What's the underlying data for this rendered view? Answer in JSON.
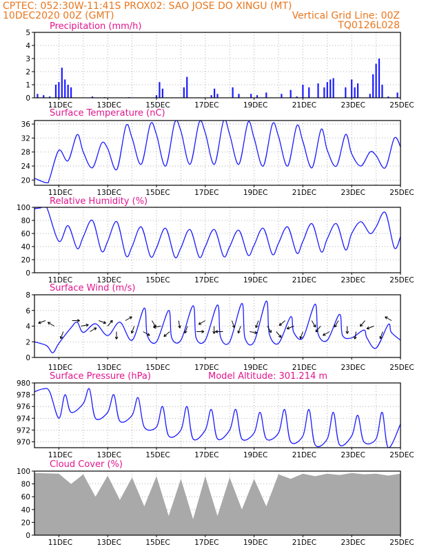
{
  "header": {
    "line1": "CPTEC:  052:30W-11:41S   PROX02: SAO JOSE DO XINGU (MT)",
    "line2_left": "10DEC2020 00Z (GMT)",
    "line2_right": "Vertical Grid Line: 00Z",
    "line3_right": "TQ0126L028"
  },
  "colors": {
    "header": "#e8761e",
    "title": "#e0158c",
    "series": "#1a1aff",
    "cloud": "#a9a9a9",
    "grid": "#999999"
  },
  "x_axis": {
    "start": "10DEC2020 00Z",
    "end": "25DEC2020 00Z",
    "tick_labels": [
      "11DEC",
      "13DEC",
      "15DEC",
      "17DEC",
      "19DEC",
      "21DEC",
      "23DEC",
      "25DEC"
    ]
  },
  "chart_data": [
    {
      "type": "bar",
      "title": "Precipitation (mm/h)",
      "ylim": [
        0,
        5
      ],
      "yticks": [
        0,
        1,
        2,
        3,
        4,
        5
      ],
      "grid": true,
      "x": [
        "10DEC 03Z",
        "10DEC 09Z",
        "10DEC 15Z",
        "10DEC 21Z",
        "11DEC 00Z",
        "11DEC 03Z",
        "11DEC 06Z",
        "11DEC 09Z",
        "11DEC 12Z",
        "12DEC 09Z",
        "12DEC 21Z",
        "13DEC 21Z",
        "15DEC 00Z",
        "15DEC 03Z",
        "15DEC 06Z",
        "16DEC 03Z",
        "16DEC 06Z",
        "17DEC 06Z",
        "17DEC 09Z",
        "17DEC 12Z",
        "18DEC 03Z",
        "18DEC 09Z",
        "18DEC 21Z",
        "19DEC 03Z",
        "19DEC 12Z",
        "20DEC 03Z",
        "20DEC 12Z",
        "20DEC 18Z",
        "21DEC 00Z",
        "21DEC 06Z",
        "21DEC 15Z",
        "21DEC 21Z",
        "22DEC 00Z",
        "22DEC 03Z",
        "22DEC 06Z",
        "22DEC 18Z",
        "23DEC 00Z",
        "23DEC 03Z",
        "23DEC 06Z",
        "23DEC 18Z",
        "23DEC 21Z",
        "24DEC 00Z",
        "24DEC 03Z",
        "24DEC 06Z",
        "24DEC 12Z",
        "24DEC 21Z"
      ],
      "values": [
        0.3,
        0.2,
        0.1,
        1.0,
        1.2,
        2.3,
        1.4,
        1.0,
        0.8,
        0.1,
        0.05,
        0.05,
        0.2,
        1.2,
        0.7,
        0.8,
        1.6,
        0.2,
        0.7,
        0.3,
        0.8,
        0.3,
        0.3,
        0.2,
        0.4,
        0.3,
        0.6,
        0.1,
        1.0,
        0.8,
        1.1,
        0.8,
        1.2,
        1.4,
        1.5,
        0.8,
        1.4,
        0.8,
        1.1,
        0.3,
        1.8,
        2.6,
        3.0,
        1.0,
        0.1,
        0.4
      ]
    },
    {
      "type": "line",
      "title": "Surface Temperature (nC)",
      "ylim": [
        18.5,
        37
      ],
      "yticks": [
        20,
        24,
        28,
        32,
        36
      ],
      "grid": true,
      "series": [
        {
          "x": [
            "10DEC 00Z",
            "10DEC 12Z",
            "10DEC 15Z",
            "11DEC 00Z",
            "11DEC 09Z",
            "11DEC 18Z",
            "12DEC 00Z",
            "12DEC 09Z",
            "12DEC 18Z",
            "13DEC 00Z",
            "13DEC 09Z",
            "13DEC 18Z",
            "14DEC 00Z",
            "14DEC 09Z",
            "14DEC 18Z",
            "15DEC 00Z",
            "15DEC 09Z",
            "15DEC 18Z",
            "16DEC 00Z",
            "16DEC 09Z",
            "16DEC 18Z",
            "17DEC 00Z",
            "17DEC 09Z",
            "17DEC 18Z",
            "18DEC 00Z",
            "18DEC 09Z",
            "18DEC 18Z",
            "19DEC 00Z",
            "19DEC 09Z",
            "19DEC 18Z",
            "20DEC 00Z",
            "20DEC 09Z",
            "20DEC 18Z",
            "21DEC 00Z",
            "21DEC 09Z",
            "21DEC 18Z",
            "22DEC 00Z",
            "22DEC 09Z",
            "22DEC 18Z",
            "23DEC 00Z",
            "23DEC 09Z",
            "23DEC 18Z",
            "24DEC 00Z",
            "24DEC 09Z",
            "24DEC 18Z",
            "25DEC 00Z"
          ],
          "values": [
            20.5,
            19.2,
            20.5,
            28.5,
            25.5,
            33.0,
            28.0,
            23.5,
            30.5,
            29.0,
            23.0,
            35.5,
            32.0,
            24.5,
            36.0,
            33.0,
            24.0,
            36.5,
            34.0,
            24.5,
            36.5,
            33.5,
            24.5,
            37.0,
            33.0,
            24.5,
            36.5,
            32.0,
            24.0,
            36.0,
            32.5,
            24.0,
            35.5,
            31.0,
            23.5,
            34.5,
            28.5,
            24.0,
            33.0,
            27.5,
            24.0,
            28.0,
            27.0,
            23.5,
            32.0,
            29.5
          ]
        }
      ]
    },
    {
      "type": "line",
      "title": "Relative Humidity (%)",
      "ylim": [
        0,
        100
      ],
      "yticks": [
        0,
        20,
        40,
        60,
        80,
        100
      ],
      "grid": true,
      "series": [
        {
          "x": [
            "10DEC 00Z",
            "10DEC 06Z",
            "10DEC 12Z",
            "11DEC 00Z",
            "11DEC 09Z",
            "11DEC 18Z",
            "12DEC 00Z",
            "12DEC 09Z",
            "12DEC 18Z",
            "13DEC 00Z",
            "13DEC 09Z",
            "13DEC 18Z",
            "14DEC 00Z",
            "14DEC 09Z",
            "14DEC 18Z",
            "15DEC 00Z",
            "15DEC 09Z",
            "15DEC 18Z",
            "16DEC 00Z",
            "16DEC 09Z",
            "16DEC 18Z",
            "17DEC 00Z",
            "17DEC 09Z",
            "17DEC 18Z",
            "18DEC 00Z",
            "18DEC 09Z",
            "18DEC 18Z",
            "19DEC 00Z",
            "19DEC 09Z",
            "19DEC 18Z",
            "20DEC 00Z",
            "20DEC 09Z",
            "20DEC 18Z",
            "21DEC 00Z",
            "21DEC 09Z",
            "21DEC 18Z",
            "22DEC 00Z",
            "22DEC 09Z",
            "22DEC 18Z",
            "23DEC 00Z",
            "23DEC 09Z",
            "23DEC 18Z",
            "24DEC 00Z",
            "24DEC 09Z",
            "24DEC 18Z",
            "25DEC 00Z"
          ],
          "values": [
            98,
            99,
            100,
            48,
            72,
            37,
            55,
            80,
            33,
            48,
            78,
            26,
            40,
            70,
            25,
            38,
            68,
            24,
            38,
            66,
            24,
            40,
            66,
            25,
            40,
            65,
            27,
            42,
            68,
            28,
            45,
            70,
            30,
            48,
            75,
            32,
            52,
            75,
            35,
            60,
            78,
            60,
            70,
            92,
            38,
            55
          ]
        }
      ]
    },
    {
      "type": "line",
      "title": "Surface Wind (m/s)",
      "ylim": [
        0,
        8
      ],
      "yticks": [
        0,
        2,
        4,
        6,
        8
      ],
      "grid": true,
      "series": [
        {
          "x": [
            "10DEC 00Z",
            "10DEC 12Z",
            "10DEC 18Z",
            "11DEC 00Z",
            "11DEC 12Z",
            "11DEC 18Z",
            "12DEC 00Z",
            "12DEC 12Z",
            "13DEC 00Z",
            "13DEC 12Z",
            "14DEC 00Z",
            "14DEC 12Z",
            "14DEC 15Z",
            "15DEC 00Z",
            "15DEC 12Z",
            "15DEC 15Z",
            "16DEC 00Z",
            "16DEC 12Z",
            "16DEC 15Z",
            "17DEC 00Z",
            "17DEC 12Z",
            "17DEC 15Z",
            "18DEC 00Z",
            "18DEC 12Z",
            "18DEC 15Z",
            "19DEC 00Z",
            "19DEC 12Z",
            "19DEC 15Z",
            "20DEC 00Z",
            "20DEC 12Z",
            "20DEC 15Z",
            "21DEC 00Z",
            "21DEC 12Z",
            "21DEC 15Z",
            "22DEC 00Z",
            "22DEC 12Z",
            "22DEC 15Z",
            "23DEC 00Z",
            "23DEC 12Z",
            "23DEC 15Z",
            "24DEC 00Z",
            "24DEC 12Z",
            "24DEC 15Z",
            "25DEC 00Z"
          ],
          "values": [
            2.0,
            1.5,
            0.6,
            1.8,
            3.8,
            4.5,
            3.2,
            4.3,
            2.8,
            4.5,
            2.2,
            6.3,
            2.8,
            2.0,
            6.0,
            2.5,
            2.2,
            6.6,
            2.5,
            2.2,
            6.7,
            2.6,
            2.0,
            6.9,
            2.5,
            2.0,
            7.2,
            3.0,
            1.8,
            5.2,
            3.2,
            2.5,
            6.8,
            3.0,
            2.2,
            5.5,
            2.8,
            2.5,
            3.5,
            2.5,
            1.2,
            4.2,
            3.2,
            2.2
          ]
        }
      ],
      "wind_arrows_dir_deg": [
        250,
        300,
        200,
        90,
        80,
        60,
        110,
        40,
        180,
        60,
        200,
        120,
        150,
        260,
        230,
        170,
        200,
        90,
        240,
        180,
        270,
        160,
        200,
        100,
        200,
        150,
        140,
        230,
        250,
        200,
        150,
        220,
        240,
        210,
        180,
        190,
        220,
        250,
        200,
        300
      ]
    },
    {
      "type": "line",
      "title": "Surface Pressure (hPa)",
      "subtitle": "Model Altitude: 301.214 m",
      "ylim": [
        969,
        980
      ],
      "yticks": [
        970,
        972,
        974,
        976,
        978,
        980
      ],
      "grid": true,
      "series": [
        {
          "x": [
            "10DEC 00Z",
            "10DEC 09Z",
            "10DEC 15Z",
            "11DEC 00Z",
            "11DEC 06Z",
            "11DEC 12Z",
            "12DEC 00Z",
            "12DEC 06Z",
            "12DEC 12Z",
            "13DEC 00Z",
            "13DEC 06Z",
            "13DEC 12Z",
            "14DEC 00Z",
            "14DEC 06Z",
            "14DEC 12Z",
            "15DEC 00Z",
            "15DEC 06Z",
            "15DEC 12Z",
            "16DEC 00Z",
            "16DEC 06Z",
            "16DEC 12Z",
            "17DEC 00Z",
            "17DEC 06Z",
            "17DEC 12Z",
            "18DEC 00Z",
            "18DEC 06Z",
            "18DEC 12Z",
            "19DEC 00Z",
            "19DEC 06Z",
            "19DEC 12Z",
            "20DEC 00Z",
            "20DEC 06Z",
            "20DEC 12Z",
            "21DEC 00Z",
            "21DEC 06Z",
            "21DEC 12Z",
            "22DEC 00Z",
            "22DEC 06Z",
            "22DEC 12Z",
            "23DEC 00Z",
            "23DEC 06Z",
            "23DEC 12Z",
            "24DEC 00Z",
            "24DEC 06Z",
            "24DEC 12Z",
            "25DEC 00Z"
          ],
          "values": [
            978.5,
            979.0,
            978.5,
            974.0,
            978.0,
            975.0,
            976.5,
            979.0,
            974.0,
            975.0,
            978.0,
            973.5,
            974.5,
            977.5,
            972.5,
            972.5,
            976.0,
            971.0,
            972.0,
            976.0,
            970.5,
            972.0,
            975.5,
            970.5,
            972.0,
            975.5,
            970.5,
            971.5,
            975.0,
            970.5,
            971.5,
            975.5,
            970.0,
            971.0,
            975.5,
            969.5,
            970.5,
            975.0,
            969.5,
            971.0,
            974.5,
            970.0,
            970.5,
            975.0,
            969.0,
            973.0
          ]
        }
      ]
    },
    {
      "type": "area",
      "title": "Cloud Cover (%)",
      "ylim": [
        0,
        100
      ],
      "yticks": [
        0,
        20,
        40,
        60,
        80,
        100
      ],
      "grid": true,
      "series": [
        {
          "x": [
            "10DEC 00Z",
            "11DEC 00Z",
            "11DEC 12Z",
            "12DEC 00Z",
            "12DEC 12Z",
            "13DEC 00Z",
            "13DEC 12Z",
            "14DEC 00Z",
            "14DEC 12Z",
            "15DEC 00Z",
            "15DEC 12Z",
            "16DEC 00Z",
            "16DEC 12Z",
            "17DEC 00Z",
            "17DEC 12Z",
            "18DEC 00Z",
            "18DEC 12Z",
            "19DEC 00Z",
            "19DEC 12Z",
            "20DEC 00Z",
            "20DEC 12Z",
            "21DEC 00Z",
            "21DEC 12Z",
            "22DEC 00Z",
            "22DEC 12Z",
            "23DEC 00Z",
            "23DEC 12Z",
            "24DEC 00Z",
            "24DEC 12Z",
            "25DEC 00Z"
          ],
          "values": [
            97,
            96,
            80,
            95,
            60,
            93,
            55,
            90,
            45,
            92,
            30,
            88,
            25,
            92,
            30,
            90,
            40,
            88,
            45,
            95,
            88,
            96,
            92,
            96,
            94,
            97,
            95,
            96,
            93,
            96
          ]
        }
      ]
    }
  ]
}
